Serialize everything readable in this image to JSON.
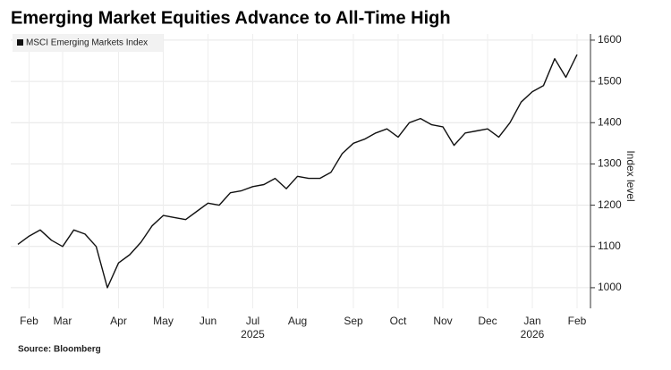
{
  "chart_data": {
    "type": "line",
    "title": "Emerging Market Equities Advance to All-Time High",
    "source": "Source: Bloomberg",
    "y_axis_label": "Index level",
    "legend_position": "top-left",
    "grid": true,
    "categories": [
      null,
      "Feb",
      null,
      null,
      "Mar",
      null,
      null,
      null,
      null,
      "Apr",
      null,
      null,
      null,
      "May",
      null,
      null,
      null,
      "Jun",
      null,
      null,
      null,
      "Jul",
      null,
      null,
      null,
      "Aug",
      null,
      null,
      null,
      null,
      "Sep",
      null,
      null,
      null,
      "Oct",
      null,
      null,
      null,
      "Nov",
      null,
      null,
      null,
      "Dec",
      null,
      null,
      null,
      "Jan",
      null,
      null,
      null,
      "Feb"
    ],
    "year_labels": [
      null,
      null,
      null,
      null,
      null,
      null,
      null,
      null,
      null,
      null,
      null,
      null,
      null,
      null,
      null,
      null,
      null,
      null,
      null,
      null,
      null,
      "2025",
      null,
      null,
      null,
      null,
      null,
      null,
      null,
      null,
      null,
      null,
      null,
      null,
      null,
      null,
      null,
      null,
      null,
      null,
      null,
      null,
      null,
      null,
      null,
      null,
      "2026",
      null,
      null,
      null,
      null
    ],
    "series": [
      {
        "name": "MSCI Emerging Markets Index",
        "color": "#111111",
        "values": [
          1105,
          1125,
          1140,
          1115,
          1100,
          1140,
          1130,
          1100,
          1000,
          1060,
          1080,
          1110,
          1150,
          1175,
          1170,
          1165,
          1185,
          1205,
          1200,
          1230,
          1235,
          1245,
          1250,
          1265,
          1240,
          1270,
          1265,
          1265,
          1280,
          1325,
          1350,
          1360,
          1375,
          1385,
          1365,
          1400,
          1410,
          1395,
          1390,
          1345,
          1375,
          1380,
          1385,
          1365,
          1400,
          1450,
          1475,
          1490,
          1555,
          1510,
          1565
        ]
      }
    ],
    "ylim": [
      950,
      1615
    ],
    "yticks": [
      1000,
      1100,
      1200,
      1300,
      1400,
      1500,
      1600
    ]
  }
}
